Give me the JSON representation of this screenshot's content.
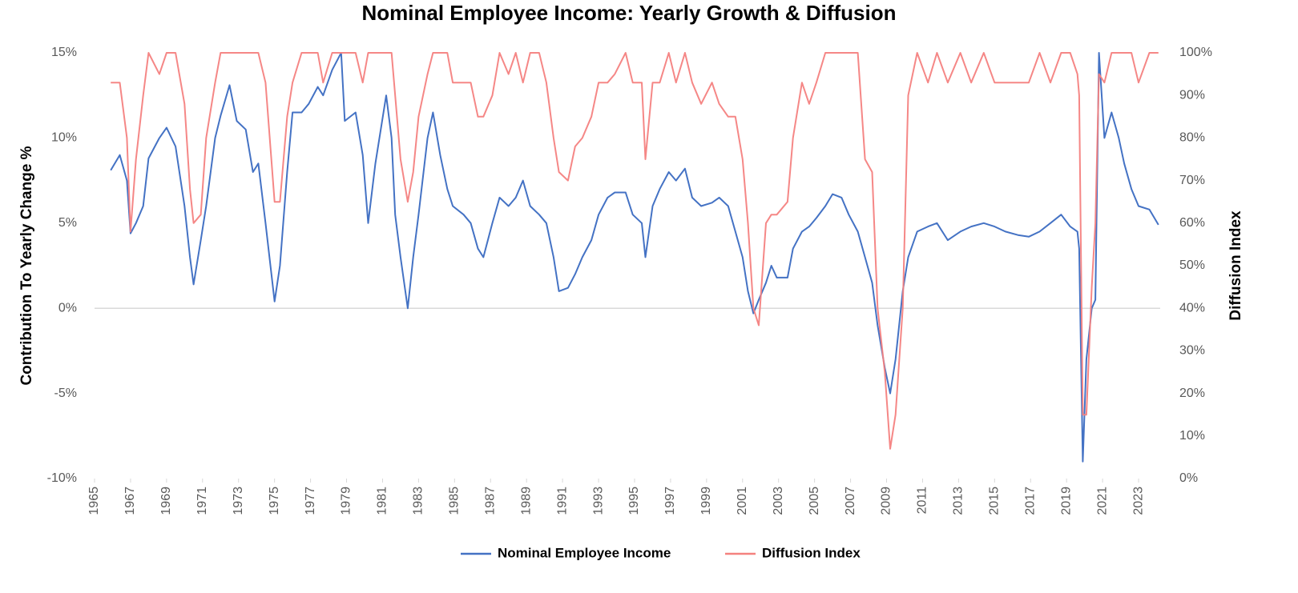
{
  "chart_data": {
    "type": "line",
    "title": "Nominal Employee Income: Yearly Growth & Diffusion",
    "y_label": "Contribution To Yearly Change %",
    "y2_label": "Diffusion Index",
    "legend": "bottom",
    "grid": false,
    "xlim": [
      1965,
      2024.2
    ],
    "xticks": [
      1965,
      1967,
      1969,
      1971,
      1973,
      1975,
      1977,
      1979,
      1981,
      1983,
      1985,
      1987,
      1989,
      1991,
      1993,
      1995,
      1997,
      1999,
      2001,
      2003,
      2005,
      2007,
      2009,
      2011,
      2013,
      2015,
      2017,
      2019,
      2021,
      2023
    ],
    "ylim": [
      -10,
      15
    ],
    "yticks": [
      {
        "value": -10,
        "label": "-10%"
      },
      {
        "value": -5,
        "label": "-5%"
      },
      {
        "value": 0,
        "label": "0%"
      },
      {
        "value": 5,
        "label": "5%"
      },
      {
        "value": 10,
        "label": "10%"
      },
      {
        "value": 15,
        "label": "15%"
      }
    ],
    "y2lim": [
      0,
      100
    ],
    "y2ticks": [
      {
        "value": 0,
        "label": "0%"
      },
      {
        "value": 10,
        "label": "10%"
      },
      {
        "value": 20,
        "label": "20%"
      },
      {
        "value": 30,
        "label": "30%"
      },
      {
        "value": 40,
        "label": "40%"
      },
      {
        "value": 50,
        "label": "50%"
      },
      {
        "value": 60,
        "label": "60%"
      },
      {
        "value": 70,
        "label": "70%"
      },
      {
        "value": 80,
        "label": "80%"
      },
      {
        "value": 90,
        "label": "90%"
      },
      {
        "value": 100,
        "label": "100%"
      }
    ],
    "x": [
      1965.9,
      1966.4,
      1966.8,
      1967.0,
      1967.3,
      1967.7,
      1968.0,
      1968.6,
      1969.0,
      1969.5,
      1970.0,
      1970.3,
      1970.5,
      1970.9,
      1971.2,
      1971.7,
      1972.0,
      1972.5,
      1972.9,
      1973.4,
      1973.8,
      1974.1,
      1974.5,
      1975.0,
      1975.3,
      1975.7,
      1976.0,
      1976.5,
      1976.9,
      1977.4,
      1977.7,
      1978.2,
      1978.7,
      1978.9,
      1979.5,
      1979.9,
      1980.2,
      1980.6,
      1981.2,
      1981.5,
      1981.7,
      1982.0,
      1982.4,
      1982.7,
      1983.0,
      1983.5,
      1983.8,
      1984.2,
      1984.6,
      1984.9,
      1985.5,
      1985.9,
      1986.3,
      1986.6,
      1987.1,
      1987.5,
      1988.0,
      1988.4,
      1988.8,
      1989.2,
      1989.7,
      1990.1,
      1990.5,
      1990.8,
      1991.3,
      1991.7,
      1992.1,
      1992.6,
      1993.0,
      1993.5,
      1993.9,
      1994.5,
      1994.9,
      1995.4,
      1995.6,
      1996.0,
      1996.4,
      1996.9,
      1997.3,
      1997.8,
      1998.2,
      1998.7,
      1999.3,
      1999.7,
      2000.2,
      2000.6,
      2001.0,
      2001.3,
      2001.6,
      2001.9,
      2002.3,
      2002.6,
      2002.9,
      2003.5,
      2003.8,
      2004.3,
      2004.7,
      2005.1,
      2005.6,
      2006.0,
      2006.5,
      2006.9,
      2007.4,
      2007.8,
      2008.2,
      2008.5,
      2008.9,
      2009.2,
      2009.5,
      2009.9,
      2010.2,
      2010.7,
      2011.3,
      2011.8,
      2012.4,
      2013.1,
      2013.7,
      2014.4,
      2015.0,
      2015.6,
      2016.3,
      2016.9,
      2017.5,
      2018.1,
      2018.7,
      2019.2,
      2019.6,
      2019.7,
      2019.9,
      2020.1,
      2020.4,
      2020.6,
      2020.8,
      2021.1,
      2021.5,
      2021.9,
      2022.2,
      2022.6,
      2023.0,
      2023.6,
      2024.1
    ],
    "series": [
      {
        "name": "Nominal Employee Income",
        "color": "#4472c4",
        "axis": "y",
        "values": [
          8.1,
          9.0,
          7.5,
          4.4,
          5.0,
          6.0,
          8.8,
          10.0,
          10.6,
          9.5,
          6.0,
          3.0,
          1.4,
          4.0,
          6.0,
          10.0,
          11.3,
          13.1,
          11.0,
          10.5,
          8.0,
          8.5,
          5.0,
          0.4,
          2.5,
          8.0,
          11.5,
          11.5,
          12.0,
          13.0,
          12.5,
          14.0,
          15.0,
          11.0,
          11.5,
          9.0,
          5.0,
          8.5,
          12.5,
          10.0,
          5.5,
          3.0,
          0.0,
          3.0,
          5.5,
          10.0,
          11.5,
          9.0,
          7.0,
          6.0,
          5.5,
          5.0,
          3.5,
          3.0,
          5.0,
          6.5,
          6.0,
          6.5,
          7.5,
          6.0,
          5.5,
          5.0,
          3.0,
          1.0,
          1.2,
          2.0,
          3.0,
          4.0,
          5.5,
          6.5,
          6.8,
          6.8,
          5.5,
          5.0,
          3.0,
          6.0,
          7.0,
          8.0,
          7.5,
          8.2,
          6.5,
          6.0,
          6.2,
          6.5,
          6.0,
          4.5,
          3.0,
          1.0,
          -0.3,
          0.5,
          1.5,
          2.5,
          1.8,
          1.8,
          3.5,
          4.5,
          4.8,
          5.3,
          6.0,
          6.7,
          6.5,
          5.5,
          4.5,
          3.0,
          1.5,
          -1.0,
          -3.5,
          -5.0,
          -3.0,
          1.0,
          3.0,
          4.5,
          4.8,
          5.0,
          4.0,
          4.5,
          4.8,
          5.0,
          4.8,
          4.5,
          4.3,
          4.2,
          4.5,
          5.0,
          5.5,
          4.8,
          4.5,
          3.5,
          -9.0,
          -3.0,
          0.0,
          0.5,
          15.0,
          10.0,
          11.5,
          10.0,
          8.5,
          7.0,
          6.0,
          5.8,
          4.9
        ]
      },
      {
        "name": "Diffusion Index",
        "color": "#f4817f",
        "axis": "y2",
        "values": [
          93,
          93,
          80,
          58,
          75,
          90,
          100,
          95,
          100,
          100,
          88,
          68,
          60,
          62,
          80,
          93,
          100,
          100,
          100,
          100,
          100,
          100,
          93,
          65,
          65,
          85,
          93,
          100,
          100,
          100,
          93,
          100,
          100,
          100,
          100,
          93,
          100,
          100,
          100,
          100,
          90,
          75,
          65,
          72,
          85,
          95,
          100,
          100,
          100,
          93,
          93,
          93,
          85,
          85,
          90,
          100,
          95,
          100,
          93,
          100,
          100,
          93,
          80,
          72,
          70,
          78,
          80,
          85,
          93,
          93,
          95,
          100,
          93,
          93,
          75,
          93,
          93,
          100,
          93,
          100,
          93,
          88,
          93,
          88,
          85,
          85,
          75,
          60,
          40,
          36,
          60,
          62,
          62,
          65,
          80,
          93,
          88,
          93,
          100,
          100,
          100,
          100,
          100,
          75,
          72,
          40,
          25,
          7,
          15,
          40,
          90,
          100,
          93,
          100,
          93,
          100,
          93,
          100,
          93,
          93,
          93,
          93,
          100,
          93,
          100,
          100,
          95,
          90,
          15,
          15,
          45,
          60,
          95,
          93,
          100,
          100,
          100,
          100,
          93,
          100,
          100
        ]
      }
    ]
  }
}
